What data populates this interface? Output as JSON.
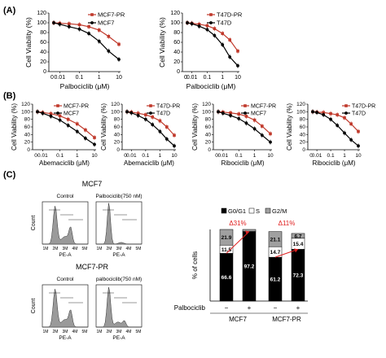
{
  "panels": {
    "A": "(A)",
    "B": "(B)",
    "C": "(C)"
  },
  "colors": {
    "resistant": "#c0392b",
    "parental": "#000000",
    "histogram_fill": "#9a9a9a",
    "bar_g0g1": "#000000",
    "bar_s": "#ffffff",
    "bar_g2m": "#a0a0a0",
    "annotation": "#e02020"
  },
  "chart_data": [
    {
      "id": "A1",
      "type": "line",
      "ylabel": "Cell Viability (%)",
      "xlabel": "Palbociclib (μM)",
      "x_ticks": [
        "0.01",
        "0.1",
        "1",
        "10"
      ],
      "y_ticks": [
        "0",
        "20",
        "40",
        "60",
        "80",
        "100",
        "120"
      ],
      "ylim": [
        0,
        120
      ],
      "x_scale": "log",
      "x": [
        0.005,
        0.01,
        0.03,
        0.1,
        0.3,
        1,
        3,
        10
      ],
      "legend_position": "top-right",
      "series": [
        {
          "name": "MCF7-PR",
          "color_key": "resistant",
          "values": [
            100,
            99,
            98,
            96,
            92,
            85,
            72,
            56
          ]
        },
        {
          "name": "MCF7",
          "color_key": "parental",
          "values": [
            100,
            97,
            92,
            87,
            78,
            62,
            42,
            25
          ]
        }
      ]
    },
    {
      "id": "A2",
      "type": "line",
      "ylabel": "Cell Viability (%)",
      "xlabel": "Palbociclib (μM)",
      "x_ticks": [
        "0.01",
        "0.1",
        "1",
        "10"
      ],
      "y_ticks": [
        "0",
        "20",
        "40",
        "60",
        "80",
        "100",
        "120"
      ],
      "ylim": [
        0,
        120
      ],
      "x_scale": "log",
      "x": [
        0.005,
        0.01,
        0.03,
        0.1,
        0.3,
        1,
        3,
        10
      ],
      "legend_position": "top-right",
      "series": [
        {
          "name": "T47D-PR",
          "color_key": "resistant",
          "values": [
            100,
            99,
            97,
            94,
            88,
            78,
            65,
            42
          ]
        },
        {
          "name": "T47D",
          "color_key": "parental",
          "values": [
            100,
            98,
            93,
            86,
            74,
            55,
            30,
            12
          ]
        }
      ]
    },
    {
      "id": "B1",
      "type": "line",
      "ylabel": "Cell Viability (%)",
      "xlabel": "Abemaciclib (μM)",
      "x_ticks": [
        "0.01",
        "0.1",
        "1",
        "10"
      ],
      "y_ticks": [
        "0",
        "20",
        "40",
        "60",
        "80",
        "100",
        "120"
      ],
      "ylim": [
        0,
        120
      ],
      "x_scale": "log",
      "x": [
        0.003,
        0.01,
        0.03,
        0.1,
        0.3,
        1,
        3,
        10
      ],
      "legend_position": "top-right",
      "series": [
        {
          "name": "MCF7-PR",
          "color_key": "resistant",
          "values": [
            100,
            98,
            95,
            89,
            80,
            68,
            52,
            32
          ]
        },
        {
          "name": "MCF7",
          "color_key": "parental",
          "values": [
            100,
            96,
            88,
            78,
            64,
            48,
            30,
            14
          ]
        }
      ]
    },
    {
      "id": "B2",
      "type": "line",
      "ylabel": "Cell Viability (%)",
      "xlabel": "Abemaciclib (μM)",
      "x_ticks": [
        "0.01",
        "0.1",
        "1",
        "10"
      ],
      "y_ticks": [
        "0",
        "20",
        "40",
        "60",
        "80",
        "100",
        "120"
      ],
      "ylim": [
        0,
        120
      ],
      "x_scale": "log",
      "x": [
        0.003,
        0.01,
        0.03,
        0.1,
        0.3,
        1,
        3,
        10
      ],
      "legend_position": "top-right",
      "series": [
        {
          "name": "T47D-PR",
          "color_key": "resistant",
          "values": [
            100,
            99,
            96,
            92,
            86,
            76,
            60,
            38
          ]
        },
        {
          "name": "T47D",
          "color_key": "parental",
          "values": [
            100,
            97,
            90,
            80,
            66,
            48,
            28,
            10
          ]
        }
      ]
    },
    {
      "id": "B3",
      "type": "line",
      "ylabel": "Cell Viability (%)",
      "xlabel": "Ribociclib (μM)",
      "x_ticks": [
        "0.01",
        "0.1",
        "1",
        "10"
      ],
      "y_ticks": [
        "0",
        "20",
        "40",
        "60",
        "80",
        "100",
        "120"
      ],
      "ylim": [
        0,
        120
      ],
      "x_scale": "log",
      "x": [
        0.003,
        0.01,
        0.03,
        0.1,
        0.3,
        1,
        3,
        10
      ],
      "legend_position": "top-right",
      "series": [
        {
          "name": "MCF7-PR",
          "color_key": "resistant",
          "values": [
            100,
            99,
            97,
            94,
            88,
            78,
            62,
            42
          ]
        },
        {
          "name": "MCF7",
          "color_key": "parental",
          "values": [
            100,
            96,
            90,
            82,
            70,
            55,
            38,
            20
          ]
        }
      ]
    },
    {
      "id": "B4",
      "type": "line",
      "ylabel": "Cell Viability (%)",
      "xlabel": "Ribociclib (μM)",
      "x_ticks": [
        "0.01",
        "0.1",
        "1",
        "10"
      ],
      "y_ticks": [
        "0",
        "20",
        "40",
        "60",
        "80",
        "100",
        "120"
      ],
      "ylim": [
        0,
        120
      ],
      "x_scale": "log",
      "x": [
        0.003,
        0.01,
        0.03,
        0.1,
        0.3,
        1,
        3,
        10
      ],
      "legend_position": "top-right",
      "series": [
        {
          "name": "T47D-PR",
          "color_key": "resistant",
          "values": [
            100,
            99,
            98,
            95,
            92,
            84,
            68,
            48
          ]
        },
        {
          "name": "T47D",
          "color_key": "parental",
          "values": [
            100,
            98,
            92,
            80,
            64,
            44,
            26,
            10
          ]
        }
      ]
    },
    {
      "id": "C-bars",
      "type": "bar",
      "stacked": true,
      "ylabel": "% of cells",
      "categories": [
        "MCF7 −",
        "MCF7 +",
        "MCF7-PR −",
        "MCF7-PR +"
      ],
      "groups": [
        "MCF7",
        "MCF7-PR"
      ],
      "treatment_label": "Palbociclib",
      "treatment_marks": [
        "−",
        "+",
        "−",
        "+"
      ],
      "legend": [
        "G0/G1",
        "S",
        "G2/M"
      ],
      "ylim": [
        0,
        100
      ],
      "series": [
        {
          "name": "G0/G1",
          "color_key": "bar_g0g1",
          "values": [
            66.6,
            97.2,
            61.2,
            72.3
          ]
        },
        {
          "name": "S",
          "color_key": "bar_s",
          "values": [
            11.5,
            0,
            14.7,
            15.4
          ]
        },
        {
          "name": "G2/M",
          "color_key": "bar_g2m",
          "values": [
            21.9,
            2.8,
            21.1,
            6.7
          ]
        }
      ],
      "value_labels": [
        [
          "66.6",
          "11.5",
          "21.9"
        ],
        [
          "97.2",
          "",
          ""
        ],
        [
          "61.2",
          "14.7",
          "21.1"
        ],
        [
          "72.3",
          "15.4",
          "6.7"
        ]
      ],
      "annotations": [
        "Δ31%",
        "Δ11%"
      ]
    }
  ],
  "flow": {
    "groups": [
      {
        "title": "MCF7",
        "panels": [
          "Control",
          "Palbociclib(750 nM)"
        ]
      },
      {
        "title": "MCF7-PR",
        "panels": [
          "Control",
          "palbociclib(750 nM)"
        ]
      }
    ],
    "ylabel": "Count",
    "xlabel": "PE-A",
    "x_ticks": [
      "1M",
      "2M",
      "3M",
      "4M",
      "5M"
    ]
  }
}
